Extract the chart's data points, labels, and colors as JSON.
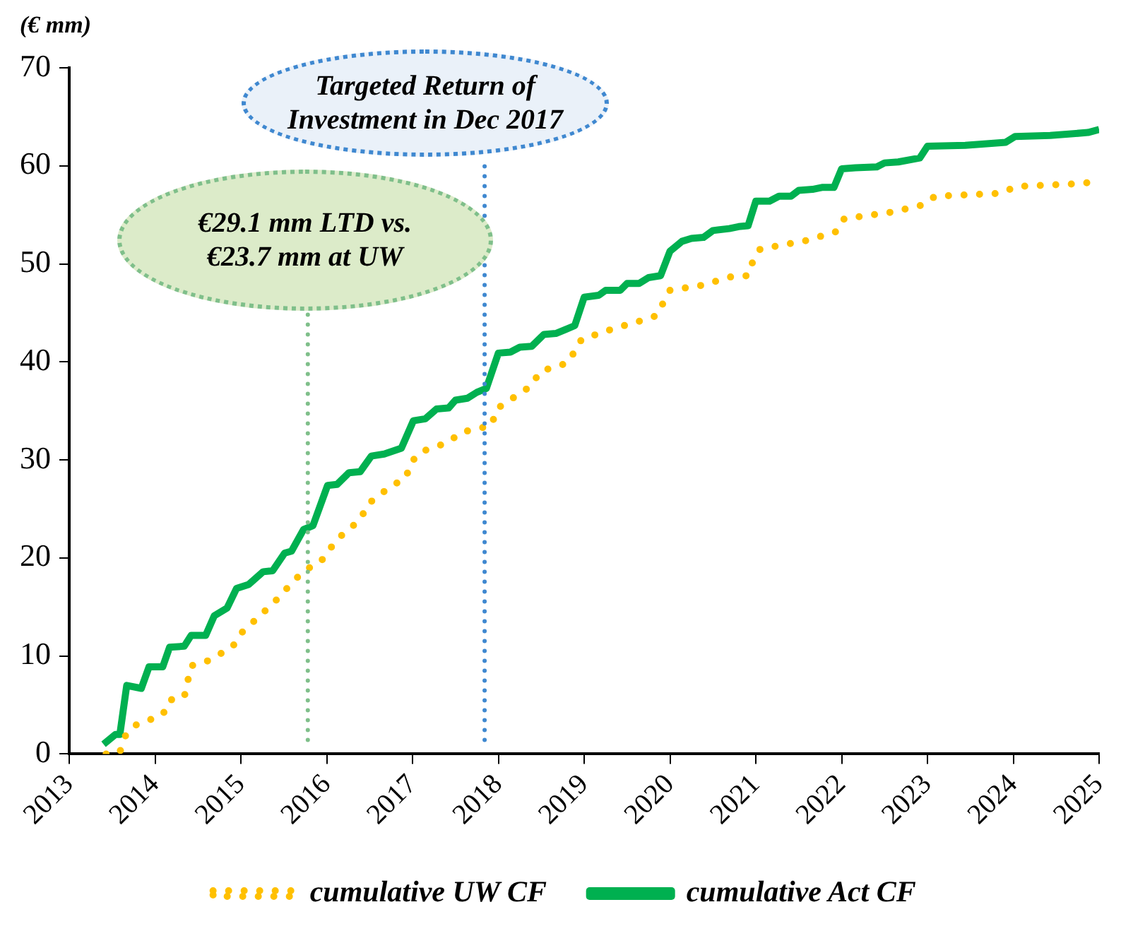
{
  "chart_data": {
    "type": "line",
    "ylabel": "(€ mm)",
    "xlim": [
      2013,
      2025
    ],
    "xticks": [
      2013,
      2014,
      2015,
      2016,
      2017,
      2018,
      2019,
      2020,
      2021,
      2022,
      2023,
      2024,
      2025
    ],
    "ylim": [
      0,
      70
    ],
    "yticks": [
      0,
      10,
      20,
      30,
      40,
      50,
      60,
      70
    ],
    "legend": "bottom",
    "series": [
      {
        "name": "cumulative UW CF",
        "color": "#ffc000",
        "line_style": "dotted",
        "x": [
          2013.43,
          2013.59,
          2013.65,
          2013.76,
          2014.09,
          2014.17,
          2014.34,
          2014.42,
          2014.59,
          2014.9,
          2015.0,
          2015.39,
          2015.61,
          2015.75,
          2015.92,
          2016.12,
          2016.39,
          2016.48,
          2016.76,
          2016.92,
          2016.98,
          2017.09,
          2017.42,
          2017.56,
          2017.92,
          2017.98,
          2018.39,
          2018.48,
          2018.81,
          2018.97,
          2019.31,
          2019.66,
          2019.84,
          2020.0,
          2020.36,
          2020.72,
          2020.91,
          2020.97,
          2021.05,
          2021.6,
          2021.94,
          2022.03,
          2022.6,
          2022.94,
          2023.09,
          2023.85,
          2024.04,
          2024.82,
          2025.0
        ],
        "values": [
          0,
          0.2,
          1.8,
          2.9,
          4.0,
          5.5,
          5.8,
          9.0,
          9.4,
          10.9,
          12.3,
          15.5,
          17.6,
          18.8,
          19.5,
          21.9,
          23.9,
          25.5,
          27.4,
          28.1,
          29.7,
          30.8,
          31.8,
          32.8,
          33.5,
          35.2,
          37.6,
          39.0,
          39.9,
          42.3,
          43.3,
          44.2,
          44.7,
          47.3,
          47.8,
          48.7,
          48.8,
          50.4,
          51.5,
          52.4,
          53.3,
          54.6,
          55.3,
          56.0,
          56.9,
          57.2,
          57.9,
          58.2,
          58.6
        ]
      },
      {
        "name": "cumulative Act CF",
        "color": "#00b050",
        "line_style": "solid",
        "x": [
          2013.4,
          2013.54,
          2013.59,
          2013.67,
          2013.84,
          2013.93,
          2014.09,
          2014.17,
          2014.34,
          2014.42,
          2014.59,
          2014.69,
          2014.84,
          2014.95,
          2015.09,
          2015.26,
          2015.37,
          2015.51,
          2015.59,
          2015.73,
          2015.84,
          2016.01,
          2016.12,
          2016.26,
          2016.39,
          2016.52,
          2016.67,
          2016.87,
          2017.01,
          2017.15,
          2017.28,
          2017.42,
          2017.5,
          2017.64,
          2017.75,
          2017.86,
          2018.0,
          2018.14,
          2018.25,
          2018.39,
          2018.53,
          2018.67,
          2018.78,
          2018.89,
          2019.0,
          2019.17,
          2019.25,
          2019.42,
          2019.5,
          2019.64,
          2019.75,
          2019.89,
          2020.0,
          2020.14,
          2020.25,
          2020.39,
          2020.5,
          2020.69,
          2020.8,
          2020.91,
          2021.0,
          2021.16,
          2021.27,
          2021.41,
          2021.5,
          2021.66,
          2021.77,
          2021.91,
          2022.0,
          2022.16,
          2022.41,
          2022.5,
          2022.66,
          2022.91,
          2023.0,
          2023.44,
          2023.91,
          2024.02,
          2024.43,
          2024.87,
          2025.0
        ],
        "values": [
          1.0,
          2.0,
          2.0,
          7.0,
          6.7,
          8.9,
          8.9,
          10.9,
          11.0,
          12.1,
          12.1,
          14.1,
          14.9,
          16.9,
          17.3,
          18.6,
          18.7,
          20.5,
          20.7,
          22.9,
          23.3,
          27.4,
          27.5,
          28.7,
          28.8,
          30.4,
          30.6,
          31.2,
          34.0,
          34.2,
          35.2,
          35.3,
          36.1,
          36.3,
          36.9,
          37.3,
          40.9,
          41.0,
          41.5,
          41.6,
          42.8,
          42.9,
          43.3,
          43.7,
          46.6,
          46.8,
          47.3,
          47.3,
          48.0,
          48.0,
          48.6,
          48.8,
          51.3,
          52.3,
          52.6,
          52.7,
          53.4,
          53.6,
          53.8,
          53.9,
          56.4,
          56.4,
          56.9,
          56.9,
          57.5,
          57.6,
          57.8,
          57.8,
          59.7,
          59.8,
          59.9,
          60.3,
          60.4,
          60.8,
          62.0,
          62.1,
          62.4,
          63.0,
          63.1,
          63.4,
          63.7
        ]
      }
    ],
    "ref_lines": [
      {
        "axis": "x",
        "value": 2015.78,
        "label": "€29.1 mm LTD vs. €23.7 mm at UW",
        "color": "#7fbf8a",
        "line_style": "dotted"
      },
      {
        "axis": "x",
        "value": 2017.84,
        "label": "Targeted Return of Investment in Dec 2017",
        "color": "#3f88d0",
        "line_style": "dotted"
      }
    ]
  }
}
